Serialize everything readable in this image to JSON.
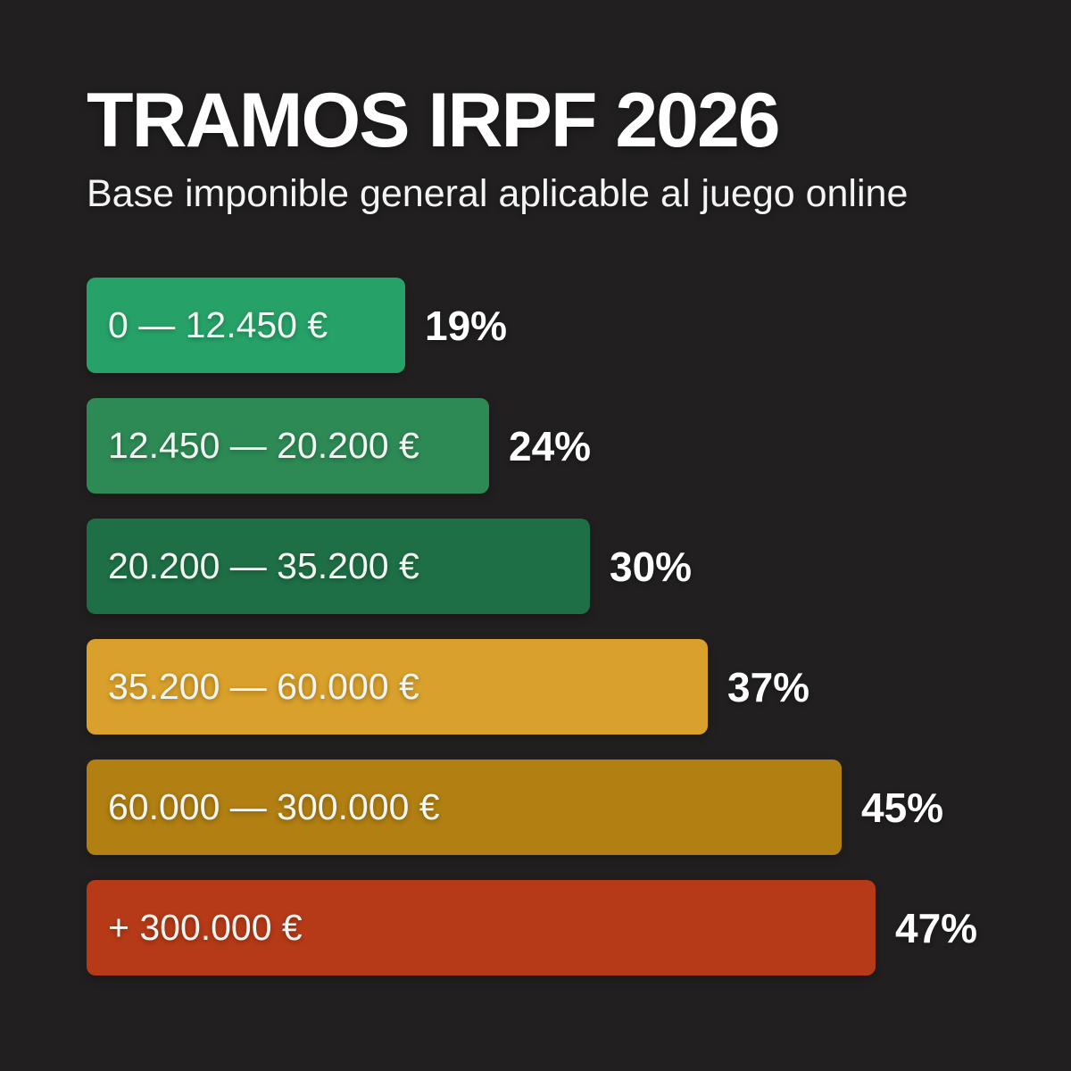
{
  "page": {
    "background_color": "#211f1f",
    "text_color": "#ffffff"
  },
  "header": {
    "title": "TRAMOS IRPF 2026",
    "subtitle": "Base imponible general aplicable al juego online"
  },
  "chart_data": {
    "type": "bar",
    "orientation": "horizontal",
    "title": "TRAMOS IRPF 2026",
    "subtitle": "Base imponible general aplicable al juego online",
    "categories": [
      "0 — 12.450 €",
      "12.450 — 20.200 €",
      "20.200 — 35.200 €",
      "35.200 — 60.000 €",
      "60.000 — 300.000 €",
      "+ 300.000 €"
    ],
    "values": [
      19,
      24,
      30,
      37,
      45,
      47
    ],
    "value_labels": [
      "19%",
      "24%",
      "30%",
      "37%",
      "45%",
      "47%"
    ],
    "bar_colors": [
      "#26a269",
      "#2d8a55",
      "#1e6f46",
      "#d9a02b",
      "#b17f12",
      "#b63a17"
    ],
    "xlim": [
      0,
      50
    ],
    "grid": false,
    "legend": false,
    "value_label_position": "right-of-bar"
  }
}
